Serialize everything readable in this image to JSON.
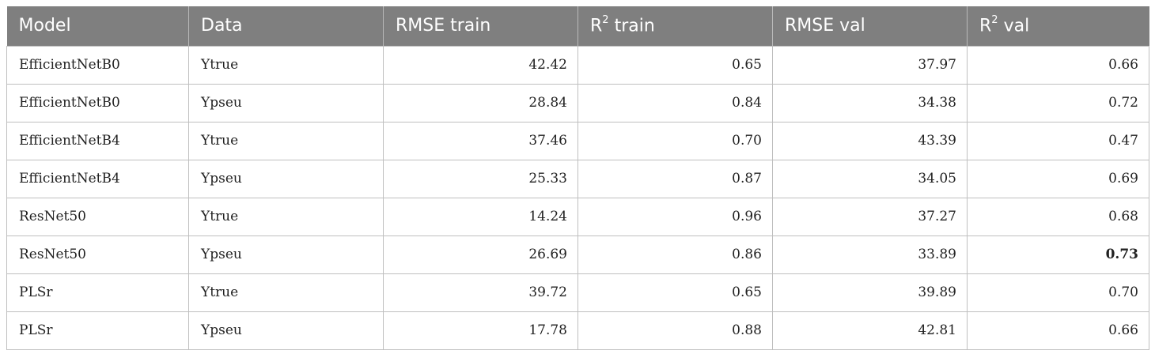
{
  "table": {
    "headers": [
      {
        "text": "Model",
        "sup": "",
        "rest": ""
      },
      {
        "text": "Data",
        "sup": "",
        "rest": ""
      },
      {
        "text": "RMSE train",
        "sup": "",
        "rest": ""
      },
      {
        "text": "R",
        "sup": "2",
        "rest": " train"
      },
      {
        "text": "RMSE val",
        "sup": "",
        "rest": ""
      },
      {
        "text": "R",
        "sup": "2",
        "rest": " val"
      }
    ],
    "rows": [
      {
        "model": "EfficientNetB0",
        "data": "Ytrue",
        "rmse_train": "42.42",
        "r2_train": "0.65",
        "rmse_val": "37.97",
        "r2_val": "0.66"
      },
      {
        "model": "EfficientNetB0",
        "data": "Ypseu",
        "rmse_train": "28.84",
        "r2_train": "0.84",
        "rmse_val": "34.38",
        "r2_val": "0.72"
      },
      {
        "model": "EfficientNetB4",
        "data": "Ytrue",
        "rmse_train": "37.46",
        "r2_train": "0.70",
        "rmse_val": "43.39",
        "r2_val": "0.47"
      },
      {
        "model": "EfficientNetB4",
        "data": "Ypseu",
        "rmse_train": "25.33",
        "r2_train": "0.87",
        "rmse_val": "34.05",
        "r2_val": "0.69"
      },
      {
        "model": "ResNet50",
        "data": "Ytrue",
        "rmse_train": "14.24",
        "r2_train": "0.96",
        "rmse_val": "37.27",
        "r2_val": "0.68"
      },
      {
        "model": "ResNet50",
        "data": "Ypseu",
        "rmse_train": "26.69",
        "r2_train": "0.86",
        "rmse_val": "33.89",
        "r2_val": "0.73"
      },
      {
        "model": "PLSr",
        "data": "Ytrue",
        "rmse_train": "39.72",
        "r2_train": "0.65",
        "rmse_val": "39.89",
        "r2_val": "0.70"
      },
      {
        "model": "PLSr",
        "data": "Ypseu",
        "rmse_train": "17.78",
        "r2_train": "0.88",
        "rmse_val": "42.81",
        "r2_val": "0.66"
      }
    ]
  }
}
